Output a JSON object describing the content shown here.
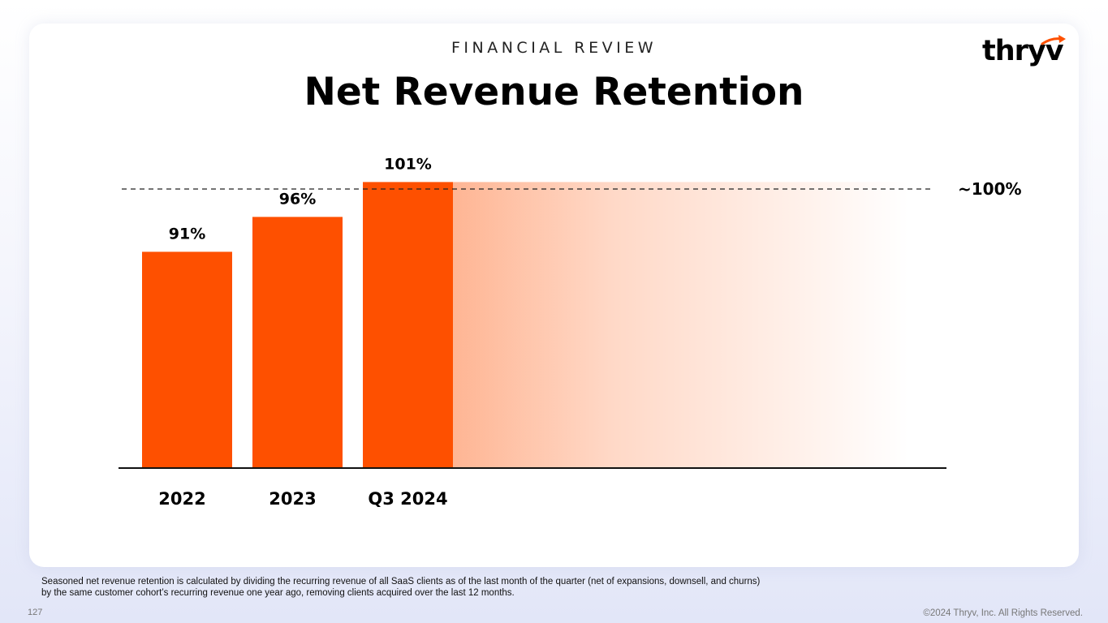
{
  "header": {
    "eyebrow": "FINANCIAL REVIEW",
    "title": "Net Revenue Retention"
  },
  "logo": {
    "text": "thryv",
    "mark_icon": "arrow-swoosh-icon"
  },
  "chart_data": {
    "type": "bar",
    "categories": [
      "2022",
      "2023",
      "Q3 2024"
    ],
    "values": [
      91,
      96,
      101
    ],
    "value_labels": [
      "91%",
      "96%",
      "101%"
    ],
    "ylim": [
      60,
      105
    ],
    "reference_line": {
      "value": 100,
      "label": "~100%",
      "style": "dashed"
    },
    "title": "Net Revenue Retention",
    "xlabel": "",
    "ylabel": "",
    "grid": false,
    "legend": "none"
  },
  "colors": {
    "bar": "#fe5000",
    "axis": "#111111",
    "text": "#000000"
  },
  "footnote": "Seasoned net revenue retention is calculated by dividing the recurring revenue of all SaaS clients as of the last month of the quarter (net of expansions, downsell, and churns) by the same customer cohort’s recurring revenue one year ago, removing clients acquired over the last 12 months.",
  "page_number": "127",
  "copyright": "©2024 Thryv, Inc. All Rights Reserved."
}
